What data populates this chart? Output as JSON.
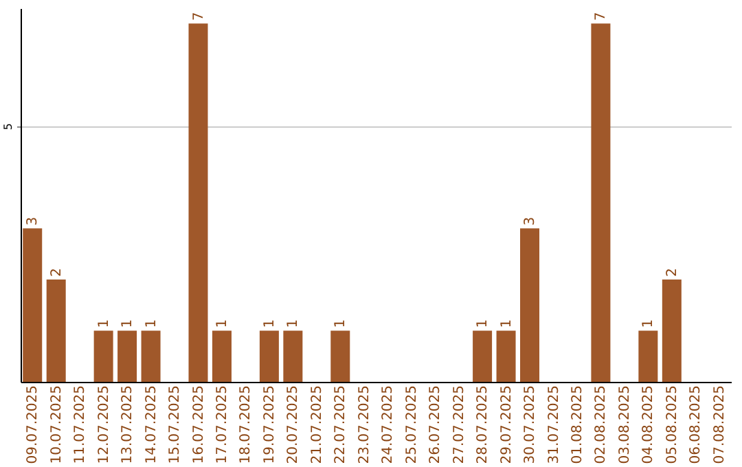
{
  "chart_data": {
    "type": "bar",
    "categories": [
      "09.07.2025",
      "10.07.2025",
      "11.07.2025",
      "12.07.2025",
      "13.07.2025",
      "14.07.2025",
      "15.07.2025",
      "16.07.2025",
      "17.07.2025",
      "18.07.2025",
      "19.07.2025",
      "20.07.2025",
      "21.07.2025",
      "22.07.2025",
      "23.07.2025",
      "24.07.2025",
      "25.07.2025",
      "26.07.2025",
      "27.07.2025",
      "28.07.2025",
      "29.07.2025",
      "30.07.2025",
      "31.07.2025",
      "01.08.2025",
      "02.08.2025",
      "03.08.2025",
      "04.08.2025",
      "05.08.2025",
      "06.08.2025",
      "07.08.2025"
    ],
    "values": [
      3,
      2,
      0,
      1,
      1,
      1,
      0,
      7,
      1,
      0,
      1,
      1,
      0,
      1,
      0,
      0,
      0,
      0,
      0,
      1,
      1,
      3,
      0,
      0,
      7,
      0,
      1,
      2,
      0,
      0
    ],
    "value_labels": [
      "3",
      "2",
      null,
      "1",
      "1",
      "1",
      null,
      "7",
      "1",
      null,
      "1",
      "1",
      null,
      "1",
      null,
      null,
      null,
      null,
      null,
      "1",
      "1",
      "3",
      null,
      null,
      "7",
      null,
      "1",
      "2",
      null,
      null
    ],
    "color": "#a0582a",
    "ylim": [
      0,
      7.3
    ],
    "yticks": [
      5
    ],
    "grid": "y"
  }
}
